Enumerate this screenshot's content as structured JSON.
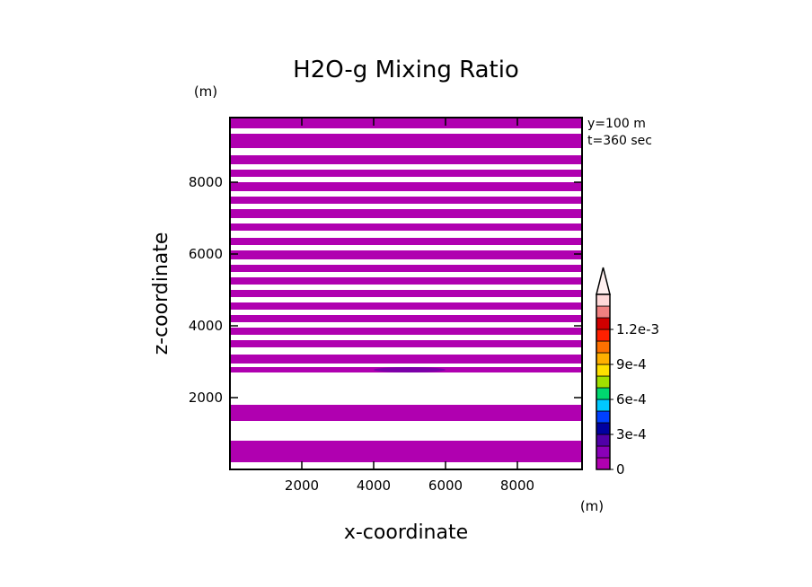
{
  "chart_data": {
    "type": "heatmap",
    "title": "H2O-g Mixing Ratio",
    "xlabel": "x-coordinate",
    "ylabel": "z-coordinate",
    "x_unit": "(m)",
    "y_unit": "(m)",
    "info_lines": [
      "y=100 m",
      "t=360 sec"
    ],
    "xlim": [
      0,
      9800
    ],
    "ylim": [
      0,
      9800
    ],
    "x_ticks": [
      2000,
      4000,
      6000,
      8000
    ],
    "y_ticks": [
      2000,
      4000,
      6000,
      8000
    ],
    "x_tick_labels": [
      "2000",
      "4000",
      "6000",
      "8000"
    ],
    "y_tick_labels": [
      "2000",
      "4000",
      "6000",
      "8000"
    ],
    "fill_color": "#b000b0",
    "dark_band_color": "#7a00a8",
    "bands": [
      {
        "z0": 200,
        "z1": 800
      },
      {
        "z0": 1350,
        "z1": 1800
      },
      {
        "z0": 2700,
        "z1": 2850
      },
      {
        "z0": 2950,
        "z1": 3200
      },
      {
        "z0": 3400,
        "z1": 3600
      },
      {
        "z0": 3750,
        "z1": 3950
      },
      {
        "z0": 4100,
        "z1": 4300
      },
      {
        "z0": 4450,
        "z1": 4650
      },
      {
        "z0": 4800,
        "z1": 5000
      },
      {
        "z0": 5150,
        "z1": 5350
      },
      {
        "z0": 5500,
        "z1": 5700
      },
      {
        "z0": 5850,
        "z1": 6100
      },
      {
        "z0": 6250,
        "z1": 6450
      },
      {
        "z0": 6650,
        "z1": 6850
      },
      {
        "z0": 7000,
        "z1": 7250
      },
      {
        "z0": 7400,
        "z1": 7600
      },
      {
        "z0": 7750,
        "z1": 8000
      },
      {
        "z0": 8150,
        "z1": 8350
      },
      {
        "z0": 8500,
        "z1": 8750
      },
      {
        "z0": 8950,
        "z1": 9350
      },
      {
        "z0": 9500,
        "z1": 9800
      }
    ],
    "colorbar": {
      "colors": [
        "#b000b0",
        "#8a00b8",
        "#5000a8",
        "#0000a0",
        "#0040ff",
        "#00c8ff",
        "#00d870",
        "#a0e000",
        "#ffe000",
        "#ffb000",
        "#ff7000",
        "#ff2000",
        "#d00000",
        "#f08080",
        "#ffd8d8"
      ],
      "tick_labels": [
        "0",
        "3e-4",
        "6e-4",
        "9e-4",
        "1.2e-3"
      ],
      "tick_values": [
        0,
        0.0003,
        0.0006,
        0.0009,
        0.0012
      ],
      "min": 0,
      "max": 0.0015
    }
  }
}
